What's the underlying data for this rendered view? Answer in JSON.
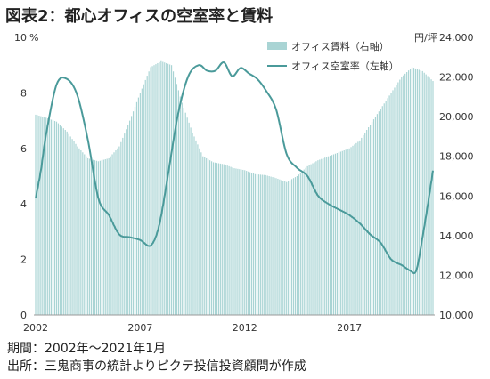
{
  "title": "図表2：都心オフィスの空室率と賃料",
  "notes": {
    "period": "期間：2002年～2021年1月",
    "source": "出所：三鬼商事の統計よりピクテ投信投資顧問が作成"
  },
  "chart_data": {
    "type": "bar+line",
    "left_axis": {
      "unit": "%",
      "min": 0,
      "max": 10,
      "ticks": [
        "0",
        "2",
        "4",
        "6",
        "8",
        "10"
      ]
    },
    "right_axis": {
      "unit": "円/坪",
      "min": 10000,
      "max": 24000,
      "ticks": [
        "10,000",
        "12,000",
        "14,000",
        "16,000",
        "18,000",
        "20,000",
        "22,000",
        "24,000"
      ]
    },
    "x_ticks": [
      "2002",
      "2007",
      "2012",
      "2017"
    ],
    "x_range": [
      2002.0,
      2021.0
    ],
    "legend": [
      {
        "label": "オフィス賃料（右軸）",
        "kind": "bar",
        "color": "#a9d4d4"
      },
      {
        "label": "オフィス空室率（左軸）",
        "kind": "line",
        "color": "#4a9a9a"
      }
    ],
    "series": [
      {
        "name": "オフィス賃料（右軸）",
        "axis": "right",
        "x": [
          2002.0,
          2002.5,
          2003.0,
          2003.5,
          2004.0,
          2004.5,
          2005.0,
          2005.5,
          2006.0,
          2006.5,
          2007.0,
          2007.5,
          2008.0,
          2008.5,
          2009.0,
          2009.5,
          2010.0,
          2010.5,
          2011.0,
          2011.5,
          2012.0,
          2012.5,
          2013.0,
          2013.5,
          2014.0,
          2014.5,
          2015.0,
          2015.5,
          2016.0,
          2016.5,
          2017.0,
          2017.5,
          2018.0,
          2018.5,
          2019.0,
          2019.5,
          2020.0,
          2020.5,
          2021.0
        ],
        "values": [
          20100,
          19950,
          19750,
          19250,
          18500,
          17900,
          17750,
          17900,
          18500,
          19800,
          21200,
          22500,
          22800,
          22600,
          20700,
          19200,
          18000,
          17700,
          17600,
          17400,
          17300,
          17100,
          17050,
          16900,
          16700,
          17000,
          17500,
          17800,
          18000,
          18200,
          18400,
          18800,
          19600,
          20400,
          21200,
          22000,
          22500,
          22300,
          21800
        ]
      },
      {
        "name": "オフィス空室率（左軸）",
        "axis": "left",
        "x": [
          2002.0,
          2002.25,
          2002.5,
          2003.0,
          2003.5,
          2004.0,
          2004.5,
          2005.0,
          2005.5,
          2006.0,
          2006.5,
          2007.0,
          2007.5,
          2007.9,
          2008.3,
          2008.8,
          2009.3,
          2009.8,
          2010.2,
          2010.6,
          2011.0,
          2011.4,
          2011.8,
          2012.2,
          2012.6,
          2013.0,
          2013.5,
          2014.0,
          2014.5,
          2015.0,
          2015.5,
          2016.0,
          2016.5,
          2017.0,
          2017.5,
          2018.0,
          2018.5,
          2019.0,
          2019.5,
          2019.9,
          2020.2,
          2020.5,
          2020.8,
          2021.0
        ],
        "values": [
          4.2,
          5.2,
          6.5,
          8.3,
          8.5,
          7.9,
          6.3,
          4.2,
          3.6,
          2.9,
          2.8,
          2.7,
          2.5,
          3.2,
          4.9,
          7.2,
          8.6,
          9.0,
          8.8,
          8.8,
          9.1,
          8.6,
          8.9,
          8.7,
          8.5,
          8.1,
          7.4,
          5.8,
          5.3,
          5.0,
          4.3,
          4.0,
          3.8,
          3.6,
          3.3,
          2.9,
          2.6,
          2.0,
          1.8,
          1.6,
          1.6,
          2.8,
          4.2,
          5.2
        ]
      }
    ]
  }
}
